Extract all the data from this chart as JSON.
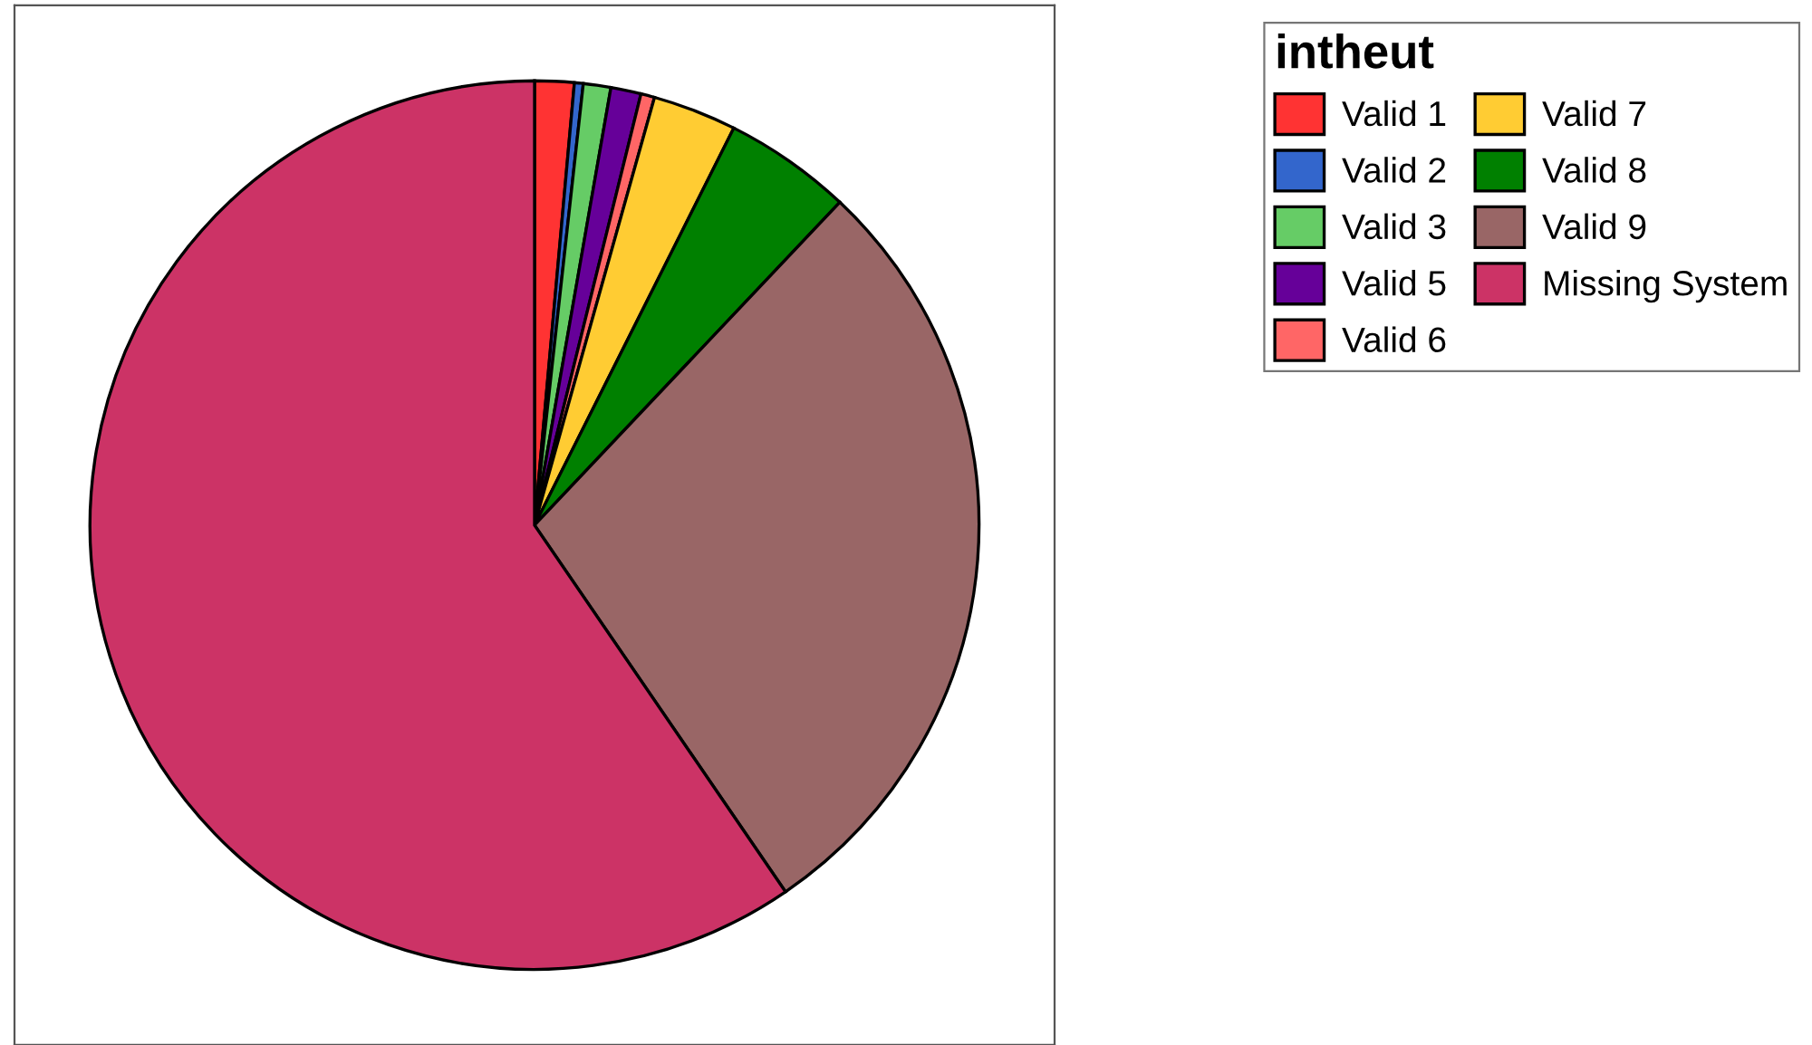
{
  "chart_data": {
    "type": "pie",
    "legend_title": "intheut",
    "legend": "right",
    "categories": [
      "Valid 1",
      "Valid 2",
      "Valid 3",
      "Valid 5",
      "Valid 6",
      "Valid 7",
      "Valid 8",
      "Valid 9",
      "Missing System"
    ],
    "values": [
      1.43,
      0.32,
      1.0,
      1.1,
      0.5,
      3.05,
      4.65,
      28.4,
      59.55
    ],
    "colors": [
      "#ff3333",
      "#3366cc",
      "#66cc66",
      "#660099",
      "#ff6666",
      "#ffcc33",
      "#008000",
      "#996666",
      "#cc3366"
    ]
  }
}
